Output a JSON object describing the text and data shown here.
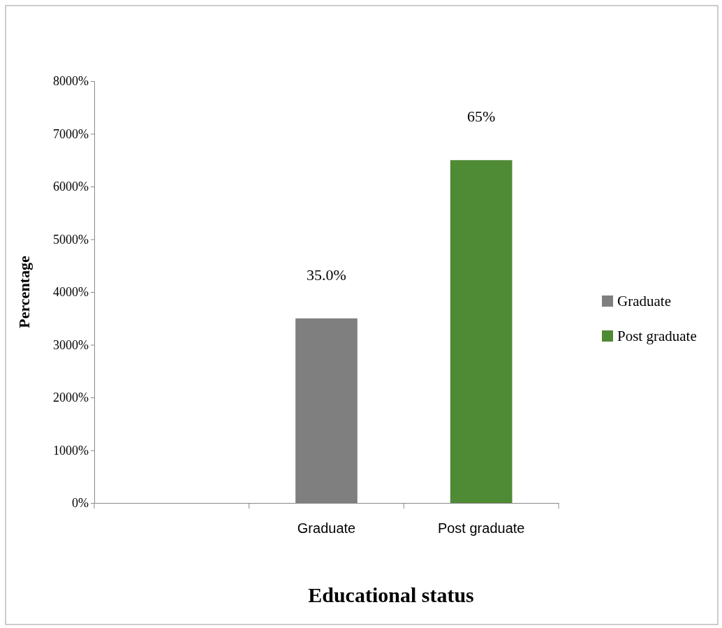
{
  "chart_data": {
    "type": "bar",
    "xlabel": "Educational status",
    "ylabel": "Percentage",
    "categories": [
      null,
      "Graduate",
      "Post graduate"
    ],
    "series": [
      {
        "name": "Graduate",
        "color": "#7f7f7f",
        "values": [
          null,
          35,
          null
        ],
        "value_labels": [
          null,
          "35.0%",
          null
        ]
      },
      {
        "name": "Post graduate",
        "color": "#4f8a35",
        "values": [
          null,
          null,
          65
        ],
        "value_labels": [
          null,
          null,
          "65%"
        ]
      }
    ],
    "ylim": [
      0,
      80
    ],
    "yticks": [
      {
        "value": 0,
        "label": "0%"
      },
      {
        "value": 10,
        "label": "1000%"
      },
      {
        "value": 20,
        "label": "2000%"
      },
      {
        "value": 30,
        "label": "3000%"
      },
      {
        "value": 40,
        "label": "4000%"
      },
      {
        "value": 50,
        "label": "5000%"
      },
      {
        "value": 60,
        "label": "6000%"
      },
      {
        "value": 70,
        "label": "7000%"
      },
      {
        "value": 80,
        "label": "8000%"
      }
    ],
    "legend": "right"
  }
}
